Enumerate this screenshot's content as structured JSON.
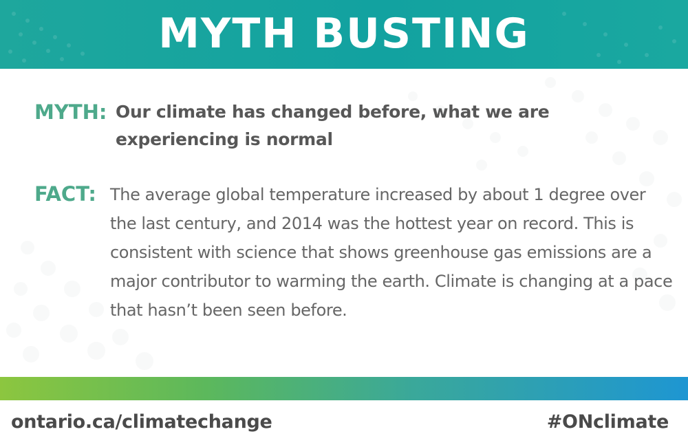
{
  "header": {
    "title": "MYTH BUSTING"
  },
  "myth": {
    "label": "MYTH:",
    "text": "Our climate has changed before, what we are experiencing is normal"
  },
  "fact": {
    "label": "FACT:",
    "text": "The average global temperature increased by about 1 degree over the last century, and 2014 was the hottest year on record. This is consistent with science that shows greenhouse gas emissions are a major contributor to warming the earth. Climate is changing at a pace that hasn’t been seen before."
  },
  "footer": {
    "url": "ontario.ca/climatechange",
    "hashtag": "#ONclimate"
  },
  "colors": {
    "header_teal": "#12a2a0",
    "label_green": "#4ea98b",
    "text_gray": "#575757",
    "bar_start": "#8cc63f",
    "bar_end": "#1e96d2"
  }
}
